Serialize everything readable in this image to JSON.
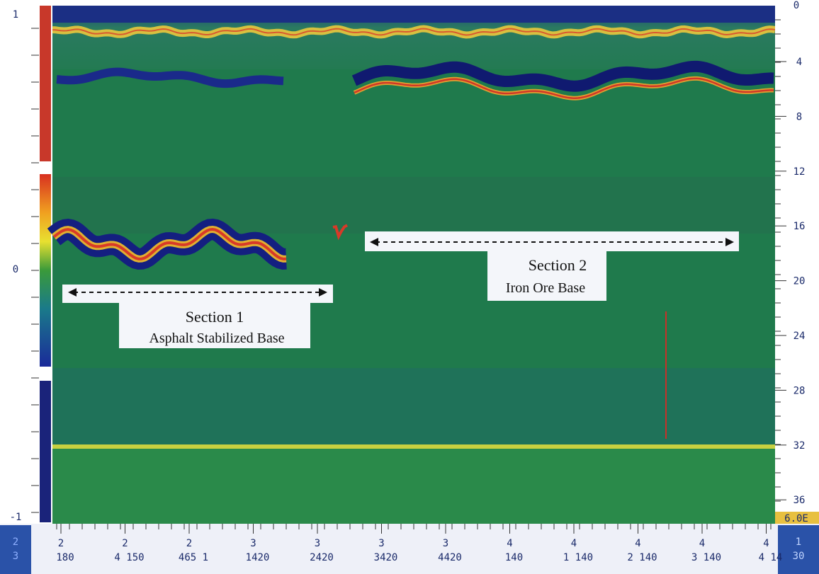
{
  "left_scale": {
    "labels": [
      "1",
      "0",
      "-1"
    ]
  },
  "depth_scale": {
    "top_label": "0",
    "labels": [
      "4",
      "8",
      "12",
      "16",
      "20",
      "24",
      "28",
      "32",
      "36"
    ],
    "readout": "6.0E"
  },
  "distance_scale": {
    "labels": [
      {
        "major": "2",
        "minor": "180"
      },
      {
        "major": "2",
        "minor": "4 150"
      },
      {
        "major": "2",
        "minor": "465 1"
      },
      {
        "major": "3",
        "minor": "1420"
      },
      {
        "major": "3",
        "minor": "2420"
      },
      {
        "major": "3",
        "minor": "3420"
      },
      {
        "major": "3",
        "minor": "4420"
      },
      {
        "major": "4",
        "minor": "140"
      },
      {
        "major": "4",
        "minor": "1 140"
      },
      {
        "major": "4",
        "minor": "2 140"
      },
      {
        "major": "4",
        "minor": "3 140"
      },
      {
        "major": "4",
        "minor": "4 14"
      }
    ]
  },
  "corner_left": {
    "top": "2",
    "bottom": "3"
  },
  "corner_right": {
    "top": "1",
    "bottom": "30"
  },
  "sections": [
    {
      "title": "Section 1",
      "subtitle": "Asphalt Stabilized Base"
    },
    {
      "title": "Section 2",
      "subtitle": "Iron Ore Base"
    }
  ]
}
